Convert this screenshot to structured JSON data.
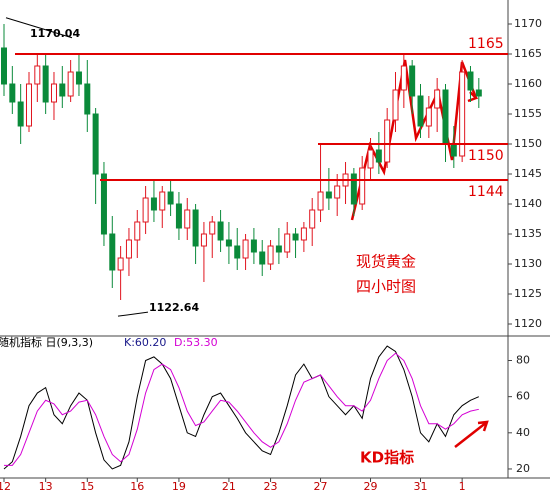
{
  "chart_data": {
    "type": "candlestick",
    "title": "现货黄金",
    "subtitle": "四小时图",
    "categories": [
      "12",
      null,
      null,
      null,
      null,
      "13",
      null,
      null,
      null,
      null,
      "15",
      null,
      null,
      null,
      null,
      null,
      "16",
      null,
      null,
      null,
      null,
      "19",
      null,
      null,
      null,
      null,
      null,
      "21",
      null,
      null,
      null,
      null,
      "23",
      null,
      null,
      null,
      null,
      null,
      "27",
      null,
      null,
      null,
      null,
      null,
      "29",
      null,
      null,
      null,
      null,
      null,
      "31",
      null,
      null,
      null,
      null,
      "1",
      null,
      null
    ],
    "open": [
      1166,
      1160,
      1157,
      1153,
      1160,
      1163,
      1157,
      1160,
      1158,
      1162,
      1160,
      1155,
      1145,
      1135,
      1129,
      1131,
      1134,
      1137,
      1141,
      1139,
      1142,
      1140,
      1136,
      1139,
      1133,
      1135,
      1137,
      1134,
      1133,
      1131,
      1134,
      1132,
      1130,
      1133,
      1132,
      1135,
      1134,
      1136,
      1139,
      1142,
      1141,
      1143,
      1145,
      1140,
      1146,
      1149,
      1147,
      1154,
      1159,
      1163,
      1158,
      1153,
      1156,
      1159,
      1150,
      1148,
      1162,
      1159
    ],
    "high": [
      1170,
      1163,
      1160,
      1162,
      1165,
      1165,
      1162,
      1163,
      1164,
      1165,
      1164,
      1156,
      1147,
      1138,
      1133,
      1136,
      1139,
      1143,
      1144,
      1143,
      1144,
      1142,
      1141,
      1140,
      1137,
      1138,
      1139,
      1137,
      1136,
      1135,
      1136,
      1134,
      1134,
      1136,
      1137,
      1136,
      1137,
      1141,
      1150,
      1146,
      1145,
      1147,
      1146,
      1148,
      1151,
      1152,
      1156,
      1162,
      1165,
      1164,
      1160,
      1158,
      1161,
      1160,
      1153,
      1164,
      1163,
      1161
    ],
    "low": [
      1158,
      1155,
      1150,
      1152,
      1157,
      1155,
      1154,
      1156,
      1157,
      1158,
      1152,
      1140,
      1133,
      1126,
      1124,
      1128,
      1131,
      1135,
      1137,
      1136,
      1138,
      1134,
      1134,
      1130,
      1127,
      1131,
      1132,
      1130,
      1129,
      1129,
      1130,
      1128,
      1129,
      1130,
      1131,
      1131,
      1132,
      1133,
      1137,
      1139,
      1138,
      1140,
      1138,
      1139,
      1144,
      1145,
      1146,
      1152,
      1156,
      1155,
      1151,
      1151,
      1152,
      1147,
      1146,
      1147,
      1157,
      1156
    ],
    "close": [
      1160,
      1157,
      1153,
      1160,
      1163,
      1157,
      1160,
      1158,
      1162,
      1160,
      1155,
      1145,
      1135,
      1129,
      1131,
      1134,
      1137,
      1141,
      1139,
      1142,
      1140,
      1136,
      1139,
      1133,
      1135,
      1137,
      1134,
      1133,
      1131,
      1134,
      1132,
      1130,
      1133,
      1132,
      1135,
      1134,
      1136,
      1139,
      1142,
      1141,
      1143,
      1145,
      1140,
      1146,
      1149,
      1147,
      1154,
      1159,
      1163,
      1158,
      1153,
      1156,
      1159,
      1150,
      1148,
      1162,
      1159,
      1158
    ],
    "up_color": "#e0141e",
    "down_color": "#0a8a3a",
    "ylim": [
      1118,
      1174
    ],
    "yticks": [
      1120,
      1125,
      1130,
      1135,
      1140,
      1145,
      1150,
      1155,
      1160,
      1165,
      1170
    ],
    "levels": [
      1165,
      1150,
      1144
    ],
    "level_color": "#e00000",
    "high_mark": 1170.04,
    "low_mark": 1122.64,
    "indicator": {
      "title": "随机指标  日(9,3,3)",
      "k_text": "K:60.20",
      "d_text": "D:53.30",
      "label": "KD指标",
      "ylim": [
        15,
        93
      ],
      "yticks": [
        20,
        40,
        60,
        80
      ],
      "series": [
        {
          "color": "#000000",
          "values": [
            20,
            24,
            38,
            55,
            62,
            65,
            50,
            45,
            55,
            62,
            58,
            40,
            25,
            20,
            22,
            35,
            60,
            80,
            82,
            78,
            70,
            55,
            40,
            38,
            50,
            60,
            62,
            55,
            48,
            40,
            35,
            30,
            28,
            40,
            55,
            72,
            78,
            70,
            72,
            60,
            55,
            50,
            55,
            48,
            70,
            82,
            88,
            85,
            75,
            60,
            40,
            35,
            45,
            38,
            50,
            55,
            58,
            60
          ]
        },
        {
          "color": "#d400d4",
          "values": [
            22,
            22,
            28,
            40,
            52,
            58,
            56,
            50,
            52,
            57,
            58,
            50,
            38,
            28,
            24,
            28,
            42,
            62,
            75,
            78,
            75,
            65,
            52,
            44,
            46,
            52,
            58,
            57,
            52,
            46,
            40,
            35,
            32,
            35,
            45,
            58,
            68,
            70,
            72,
            66,
            60,
            55,
            55,
            52,
            58,
            70,
            80,
            84,
            80,
            70,
            55,
            45,
            45,
            42,
            45,
            50,
            52,
            53
          ]
        }
      ]
    }
  }
}
